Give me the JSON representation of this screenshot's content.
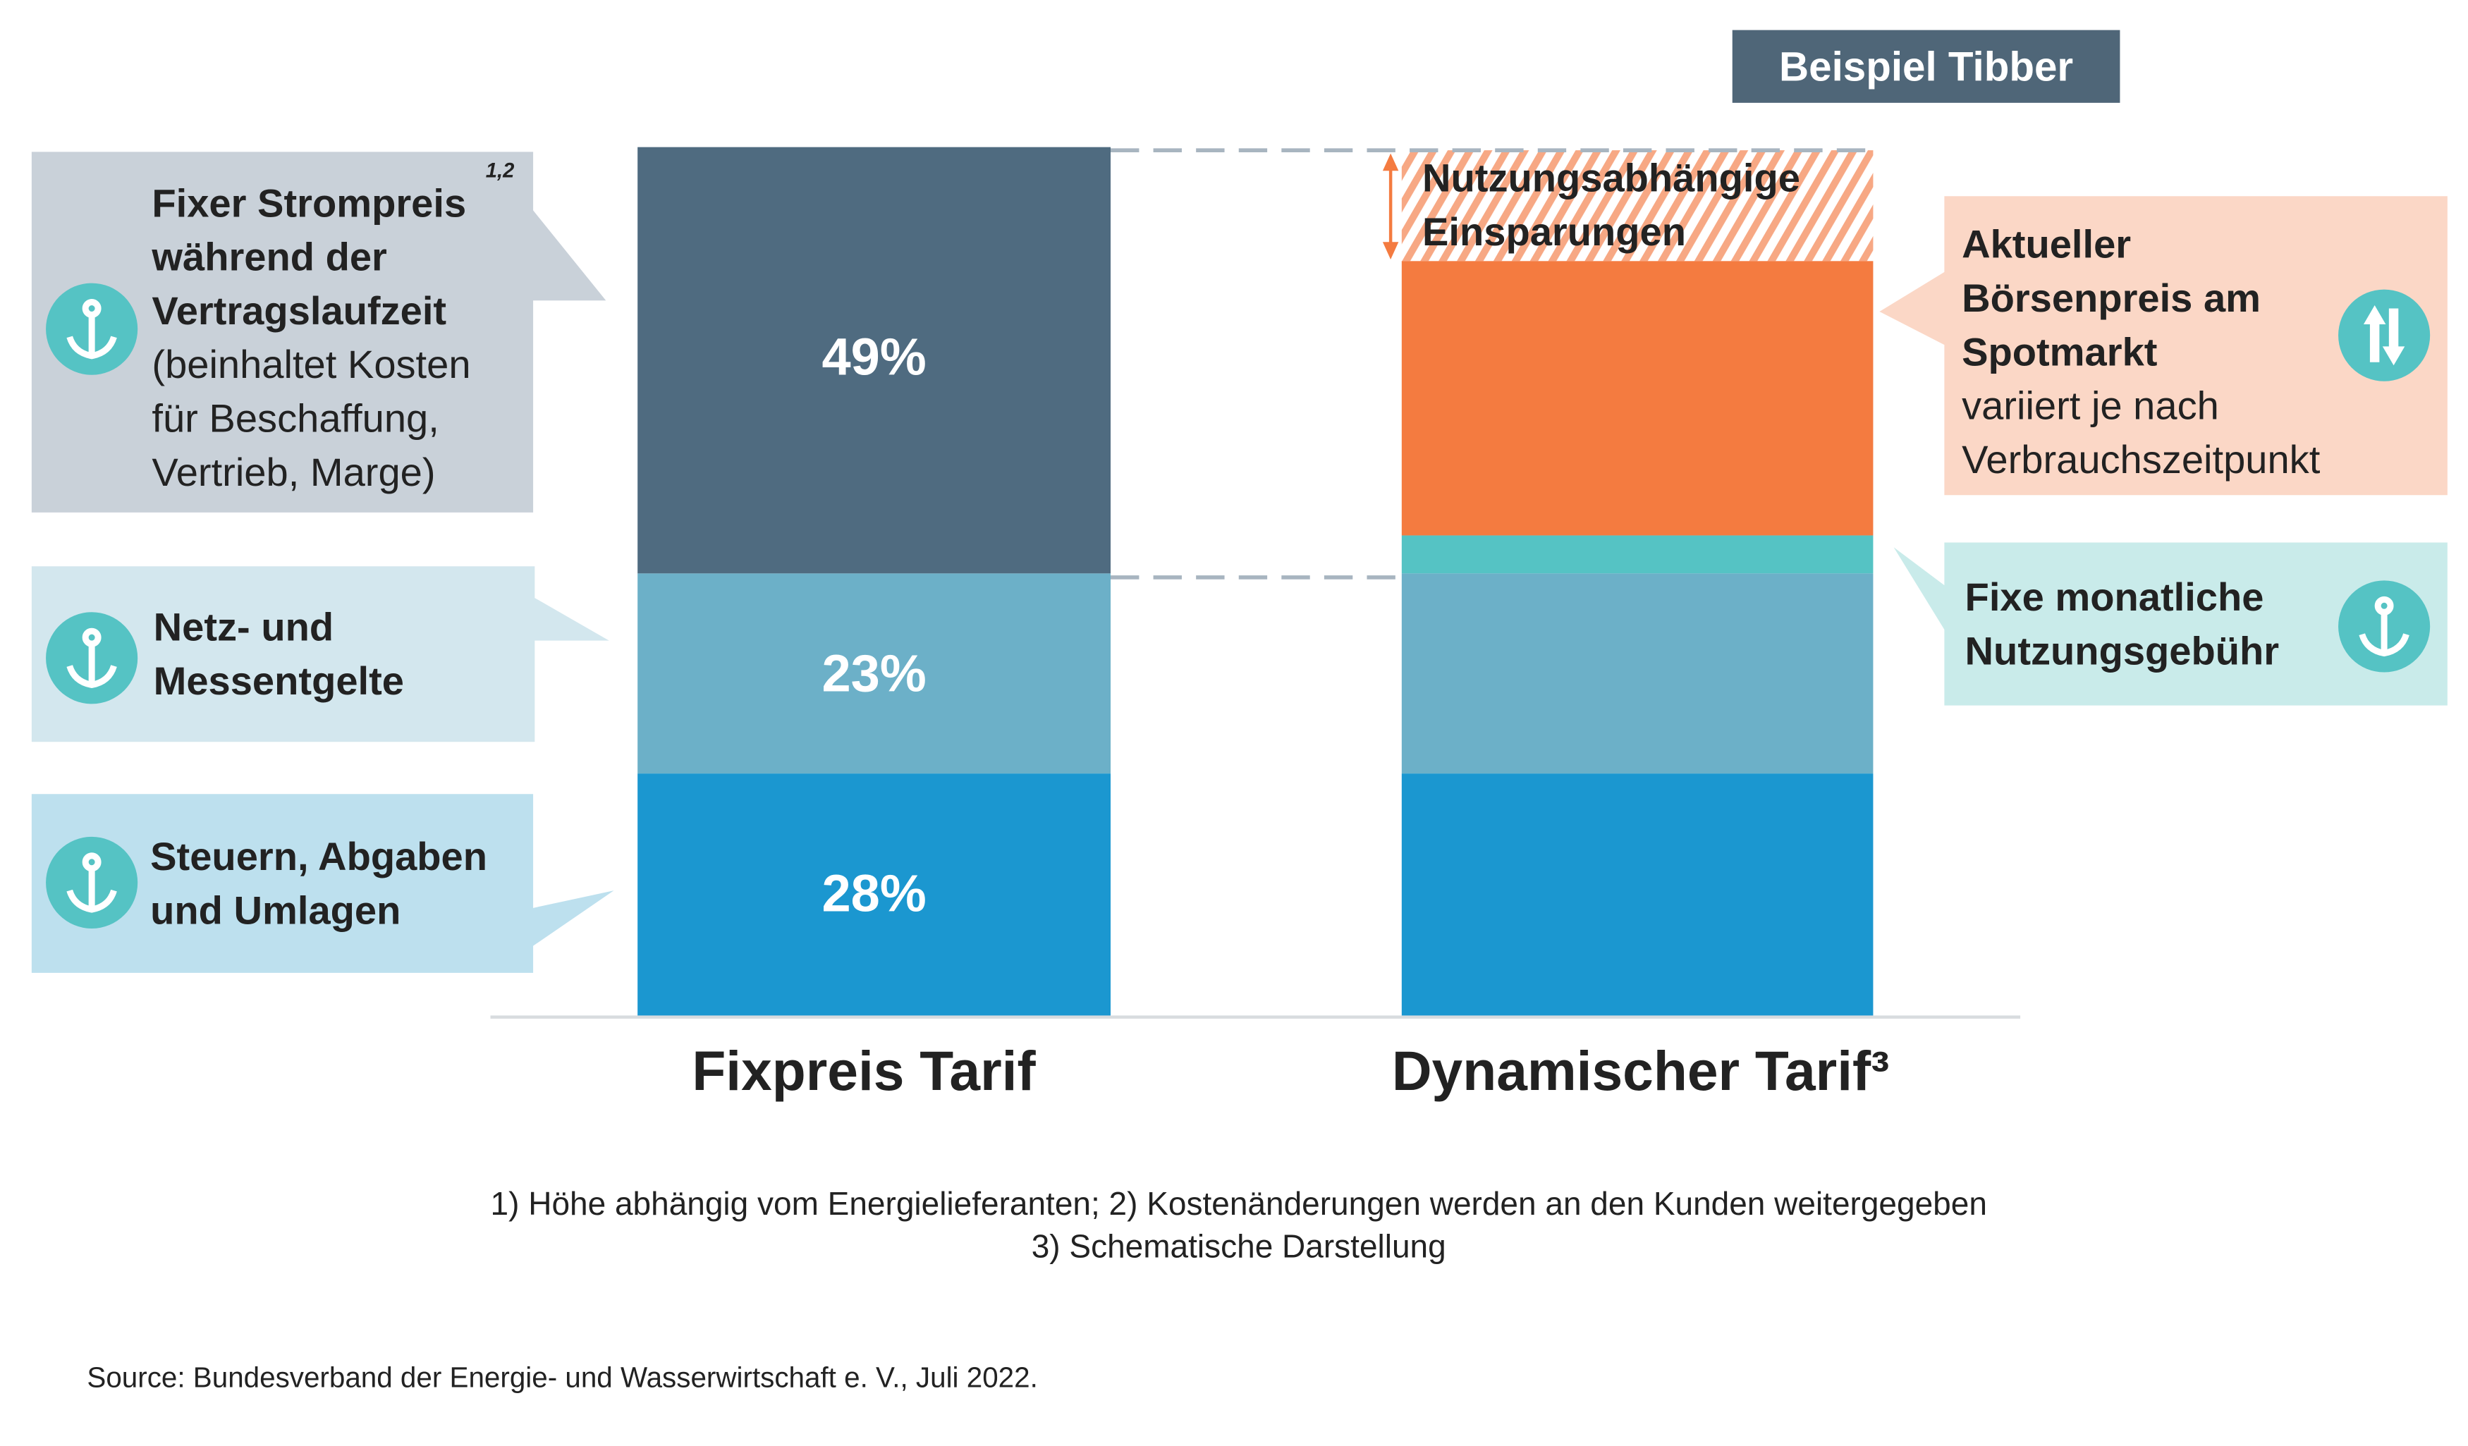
{
  "tag": "Beispiel Tibber",
  "colors": {
    "fixed_price": "#4f6b80",
    "network": "#6cb0c8",
    "taxes": "#1b97d0",
    "spot": "#f47b40",
    "fee": "#55c3c4",
    "savings_hatch": "#f7a884",
    "icon_circle": "#55c3c4"
  },
  "callouts": {
    "fixed_price": {
      "lines_bold": [
        "Fixer Strompreis",
        "während der",
        "Vertragslaufzeit"
      ],
      "superscript": "1,2",
      "lines": [
        "(beinhaltet Kosten",
        "für Beschaffung,",
        "Vertrieb, Marge)"
      ],
      "icon": "anchor-icon"
    },
    "network": {
      "lines_bold": [
        "Netz- und",
        "Messentgelte"
      ],
      "icon": "anchor-icon"
    },
    "taxes": {
      "lines_bold": [
        "Steuern, Abgaben",
        "und Umlagen"
      ],
      "icon": "anchor-icon"
    },
    "spot": {
      "lines_bold": [
        "Aktueller",
        "Börsenpreis am",
        "Spotmarkt"
      ],
      "lines": [
        "variiert je nach",
        "Verbrauchszeitpunkt"
      ],
      "icon": "up-down-arrows-icon"
    },
    "fee": {
      "lines_bold": [
        "Fixe monatliche",
        "Nutzungsgebühr"
      ],
      "icon": "anchor-icon"
    },
    "savings": {
      "lines_bold": [
        "Nutzungsabhängige",
        "Einsparungen"
      ]
    }
  },
  "chart_data": {
    "type": "bar",
    "stacked": true,
    "categories": [
      "Fixpreis Tarif",
      "Dynamischer Tarif³"
    ],
    "series": [
      {
        "name": "Steuern, Abgaben und Umlagen",
        "values": [
          28,
          null
        ],
        "labels": [
          "28%",
          ""
        ]
      },
      {
        "name": "Netz- und Messentgelte",
        "values": [
          23,
          null
        ],
        "labels": [
          "23%",
          ""
        ]
      },
      {
        "name": "Fixer Strompreis",
        "values": [
          49,
          null
        ],
        "labels": [
          "49%",
          ""
        ]
      },
      {
        "name": "Fixe monatliche Nutzungsgebühr",
        "values": [
          null,
          null
        ]
      },
      {
        "name": "Aktueller Börsenpreis am Spotmarkt",
        "values": [
          null,
          null
        ]
      },
      {
        "name": "Nutzungsabhängige Einsparungen",
        "values": [
          null,
          null
        ]
      }
    ],
    "note": "3) Schematische Darstellung",
    "ylim": [
      0,
      100
    ],
    "grid": false
  },
  "footnotes": [
    "1) Höhe abhängig vom Energielieferanten;  2) Kostenänderungen werden an den Kunden weitergegeben",
    "3) Schematische Darstellung"
  ],
  "source": "Source: Bundesverband der Energie- und Wasserwirtschaft e. V., Juli 2022."
}
